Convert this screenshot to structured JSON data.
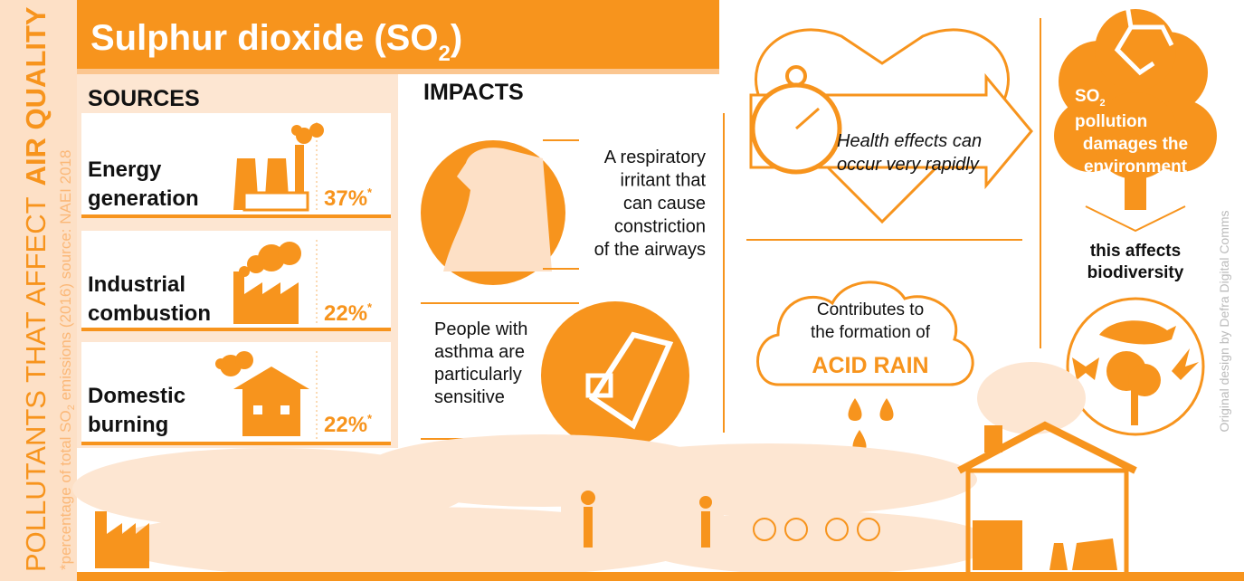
{
  "side": {
    "title_light": "POLLUTANTS THAT AFFECT",
    "title_bold": "AIR QUALITY",
    "note_start": "*percentage of total SO",
    "note_sub": "2",
    "note_end": " emissions (2016) source: NAEI 2018"
  },
  "header": {
    "title": "Sulphur dioxide (SO",
    "title_sub": "2",
    "title_end": ")"
  },
  "sources": {
    "title": "SOURCES",
    "items": [
      {
        "lines": [
          "Energy",
          "generation"
        ],
        "share": "37%",
        "mark": "*"
      },
      {
        "lines": [
          "Industrial",
          "combustion"
        ],
        "share": "22%",
        "mark": "*"
      },
      {
        "lines": [
          "Domestic",
          "burning"
        ],
        "share": "22%",
        "mark": "*"
      }
    ]
  },
  "impacts": {
    "title": "IMPACTS",
    "respiratory": [
      "A respiratory",
      "irritant that",
      "can cause",
      "constriction",
      "of the airways"
    ],
    "asthma": [
      "People with",
      "asthma are",
      "particularly",
      "sensitive"
    ]
  },
  "health": [
    "Health effects can",
    "occur very rapidly"
  ],
  "acid_rain": {
    "lines": [
      "Contributes to",
      "the formation of"
    ],
    "emphasis": "ACID RAIN"
  },
  "environment": {
    "so": "SO",
    "so_sub": "2",
    "lines": [
      "pollution",
      "damages the",
      "environment"
    ],
    "biodiversity": [
      "this affects",
      "biodiversity"
    ]
  },
  "credit": "Original design by Defra Digital Comms"
}
